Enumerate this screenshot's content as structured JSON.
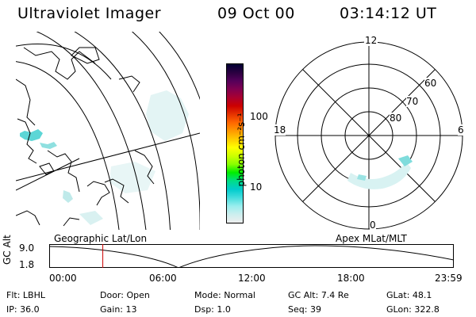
{
  "header": {
    "instrument": "Ultraviolet Imager",
    "date": "09 Oct 00",
    "time": "03:14:12 UT"
  },
  "colorbar": {
    "unit_label": "photon cm⁻²s⁻¹",
    "tick_labels": [
      "100",
      "10"
    ],
    "colors": [
      "#000033",
      "#2a0040",
      "#55005a",
      "#800050",
      "#aa0030",
      "#cc0000",
      "#e63300",
      "#ff6600",
      "#ff9900",
      "#ffcc00",
      "#ffff00",
      "#ccff00",
      "#88ff00",
      "#00ee00",
      "#00dd88",
      "#00cccc",
      "#44dddd",
      "#99eeee",
      "#cceeee",
      "#eeeeee"
    ]
  },
  "polar_plot": {
    "mlt_labels": {
      "top": "12",
      "left": "18",
      "right": "6",
      "bottom": "0"
    },
    "lat_labels": [
      "60",
      "70",
      "80"
    ]
  },
  "timeline": {
    "y_axis_label": "GC Alt",
    "y_ticks": [
      "9.0",
      "1.8"
    ],
    "left_caption": "Geographic Lat/Lon",
    "right_caption": "Apex MLat/MLT",
    "x_ticks": [
      "00:00",
      "06:00",
      "12:00",
      "18:00",
      "23:59"
    ],
    "current_time_fraction": 0.1325,
    "marker_color": "#cc0000"
  },
  "status": {
    "row1": [
      {
        "key": "Flt:",
        "value": "LBHL"
      },
      {
        "key": "Door:",
        "value": "Open"
      },
      {
        "key": "Mode:",
        "value": "Normal"
      },
      {
        "key": "GC Alt:",
        "value": "7.4 Re"
      },
      {
        "key": "GLat:",
        "value": "48.1"
      }
    ],
    "row2": [
      {
        "key": "IP:",
        "value": "36.0"
      },
      {
        "key": "Gain:",
        "value": "13"
      },
      {
        "key": "Dsp:",
        "value": "1.0"
      },
      {
        "key": "Seq:",
        "value": "39"
      },
      {
        "key": "GLon:",
        "value": "322.8"
      }
    ]
  }
}
